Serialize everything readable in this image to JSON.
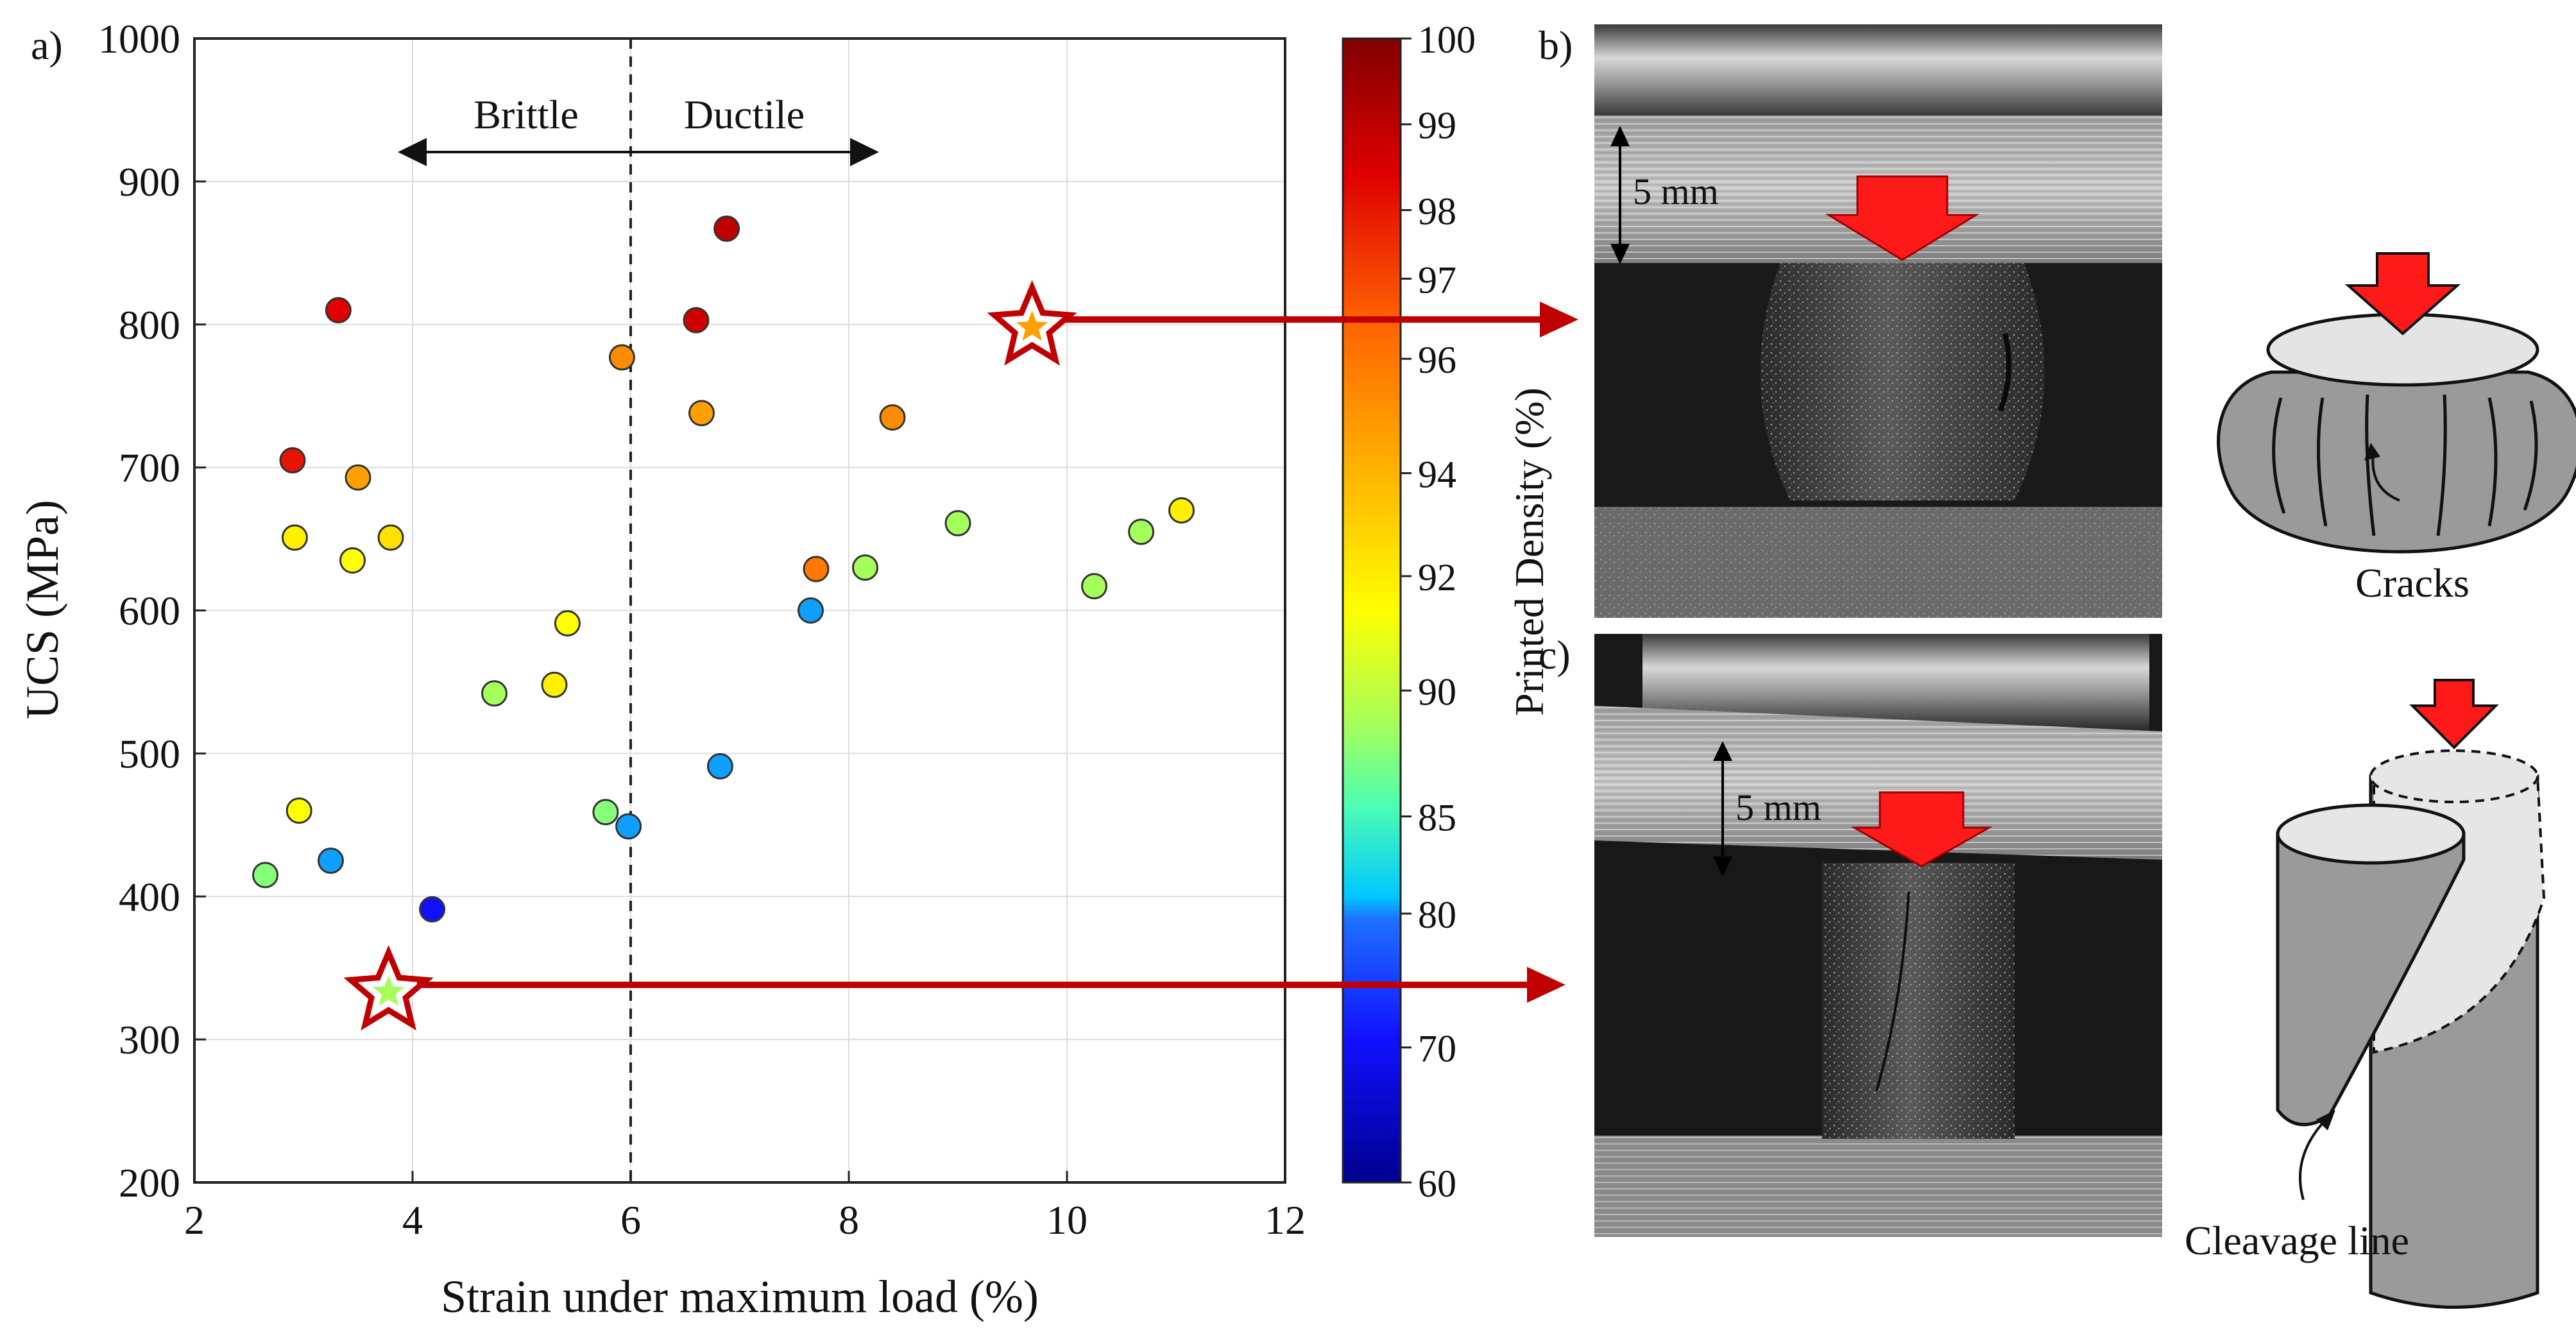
{
  "colors": {
    "arrow_red": "#c00000",
    "star_stroke": "#c00000",
    "grid": "#dcdcdc",
    "axis": "#222222",
    "press_red": "#ff1a1a",
    "sample_gray": "#9a9a9a"
  },
  "panel_labels": {
    "a": "a)",
    "b": "b)",
    "c": "c)"
  },
  "annotations": {
    "brittle": "Brittle",
    "ductile": "Ductile",
    "scale_b": "5 mm",
    "scale_c": "5 mm",
    "cracks": "Cracks",
    "cleavage": "Cleavage line"
  },
  "chart_data": {
    "type": "scatter",
    "xlabel": "Strain under maximum load (%)",
    "ylabel": "UCS (MPa)",
    "xlim": [
      2,
      12
    ],
    "ylim": [
      200,
      1000
    ],
    "xticks": [
      2,
      4,
      6,
      8,
      10,
      12
    ],
    "yticks": [
      200,
      300,
      400,
      500,
      600,
      700,
      800,
      900,
      1000
    ],
    "grid": true,
    "divider_x": 6,
    "colorbar": {
      "label": "Printed Density (%)",
      "min": 60,
      "max": 100,
      "ticks": [
        60,
        70,
        80,
        85,
        90,
        92,
        94,
        96,
        97,
        98,
        99,
        100
      ]
    },
    "points": [
      {
        "x": 2.65,
        "y": 415,
        "density": 85
      },
      {
        "x": 2.9,
        "y": 705,
        "density": 96.5
      },
      {
        "x": 2.92,
        "y": 651,
        "density": 90.5
      },
      {
        "x": 2.96,
        "y": 460,
        "density": 90
      },
      {
        "x": 3.25,
        "y": 425,
        "density": 75
      },
      {
        "x": 3.32,
        "y": 810,
        "density": 97
      },
      {
        "x": 3.45,
        "y": 635,
        "density": 90
      },
      {
        "x": 3.5,
        "y": 693,
        "density": 93
      },
      {
        "x": 3.8,
        "y": 651,
        "density": 91
      },
      {
        "x": 4.18,
        "y": 391,
        "density": 65
      },
      {
        "x": 4.75,
        "y": 542,
        "density": 86
      },
      {
        "x": 5.3,
        "y": 548,
        "density": 90.5
      },
      {
        "x": 5.42,
        "y": 591,
        "density": 90
      },
      {
        "x": 5.77,
        "y": 459,
        "density": 85
      },
      {
        "x": 5.92,
        "y": 777,
        "density": 93.5
      },
      {
        "x": 5.98,
        "y": 449,
        "density": 75
      },
      {
        "x": 6.6,
        "y": 803,
        "density": 97.5
      },
      {
        "x": 6.65,
        "y": 738,
        "density": 93
      },
      {
        "x": 6.82,
        "y": 491,
        "density": 75
      },
      {
        "x": 6.88,
        "y": 867,
        "density": 98
      },
      {
        "x": 7.65,
        "y": 600,
        "density": 75
      },
      {
        "x": 7.7,
        "y": 629,
        "density": 94
      },
      {
        "x": 8.15,
        "y": 630,
        "density": 86
      },
      {
        "x": 8.4,
        "y": 735,
        "density": 93.5
      },
      {
        "x": 9.0,
        "y": 661,
        "density": 86
      },
      {
        "x": 10.25,
        "y": 617,
        "density": 86
      },
      {
        "x": 10.68,
        "y": 655,
        "density": 86
      },
      {
        "x": 11.05,
        "y": 670,
        "density": 90.5
      }
    ],
    "highlighted": [
      {
        "x": 9.68,
        "y": 798,
        "density": 93,
        "target": "b"
      },
      {
        "x": 3.78,
        "y": 333,
        "density": 86,
        "target": "c"
      }
    ]
  }
}
